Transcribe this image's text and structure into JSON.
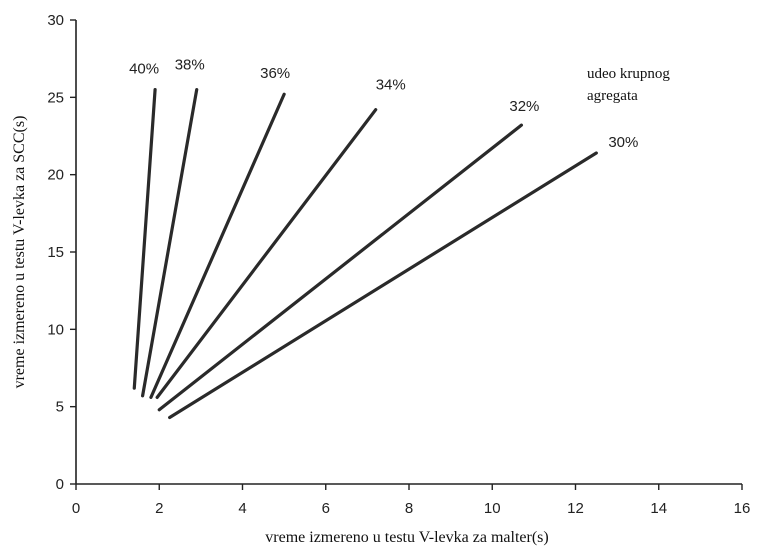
{
  "chart_data": {
    "type": "line",
    "xlabel": "vreme izmereno u testu V-levka za malter(s)",
    "ylabel": "vreme izmereno u testu V-levka za SCC(s)",
    "xlim": [
      0,
      16
    ],
    "ylim": [
      0,
      30
    ],
    "x_ticks": [
      0,
      2,
      4,
      6,
      8,
      10,
      12,
      14,
      16
    ],
    "y_ticks": [
      0,
      5,
      10,
      15,
      20,
      25,
      30
    ],
    "grid": false,
    "legend_title": [
      "udeo krupnog",
      "agregata"
    ],
    "series": [
      {
        "name": "40%",
        "x": [
          1.4,
          1.9
        ],
        "y": [
          6.2,
          25.5
        ]
      },
      {
        "name": "38%",
        "x": [
          1.6,
          2.9
        ],
        "y": [
          5.7,
          25.5
        ]
      },
      {
        "name": "36%",
        "x": [
          1.8,
          5.0
        ],
        "y": [
          5.6,
          25.2
        ]
      },
      {
        "name": "34%",
        "x": [
          1.95,
          7.2
        ],
        "y": [
          5.6,
          24.2
        ]
      },
      {
        "name": "32%",
        "x": [
          2.0,
          10.7
        ],
        "y": [
          4.8,
          23.2
        ]
      },
      {
        "name": "30%",
        "x": [
          2.25,
          12.5
        ],
        "y": [
          4.3,
          21.4
        ]
      }
    ]
  }
}
